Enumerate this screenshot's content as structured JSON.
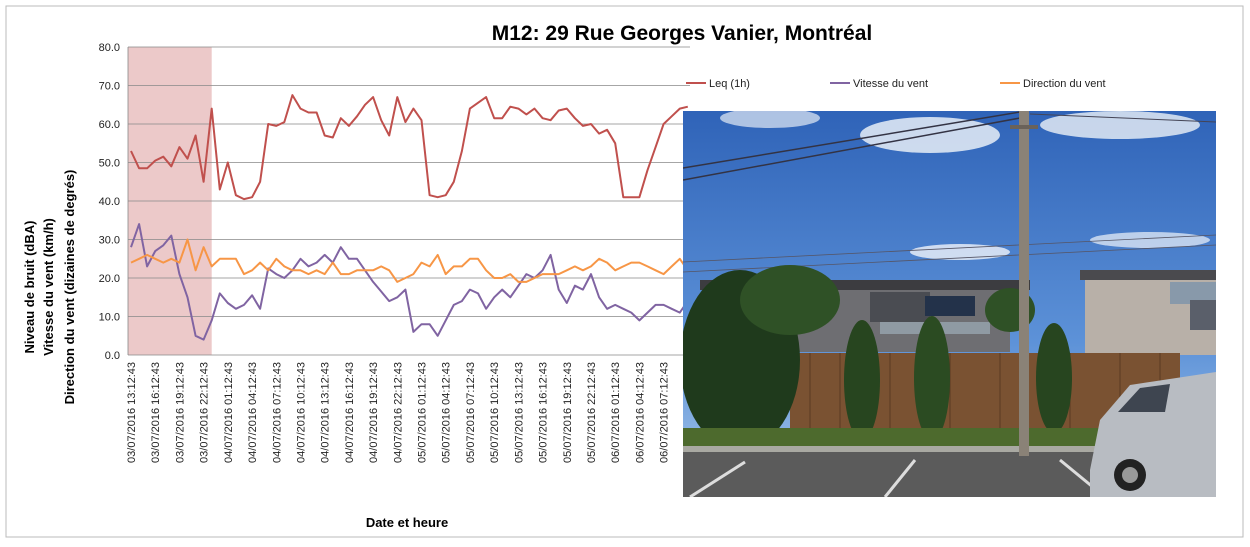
{
  "chart_data": {
    "type": "line",
    "title": "M12: 29 Rue Georges Vanier, Montréal",
    "x_label": "Date et heure",
    "y_label": [
      "Niveau de bruit (dBA)",
      "Vitesse du vent (km/h)",
      "Direction du vent (dizaines de degrés)"
    ],
    "categories": [
      "03/07/2016 13:12:43",
      null,
      null,
      "03/07/2016 16:12:43",
      null,
      null,
      "03/07/2016 19:12:43",
      null,
      null,
      "03/07/2016 22:12:43",
      null,
      null,
      "04/07/2016 01:12:43",
      null,
      null,
      "04/07/2016 04:12:43",
      null,
      null,
      "04/07/2016 07:12:43",
      null,
      null,
      "04/07/2016 10:12:43",
      null,
      null,
      "04/07/2016 13:12:43",
      null,
      null,
      "04/07/2016 16:12:43",
      null,
      null,
      "04/07/2016 19:12:43",
      null,
      null,
      "04/07/2016 22:12:43",
      null,
      null,
      "05/07/2016 01:12:43",
      null,
      null,
      "05/07/2016 04:12:43",
      null,
      null,
      "05/07/2016 07:12:43",
      null,
      null,
      "05/07/2016 10:12:43",
      null,
      null,
      "05/07/2016 13:12:43",
      null,
      null,
      "05/07/2016 16:12:43",
      null,
      null,
      "05/07/2016 19:12:43",
      null,
      null,
      "05/07/2016 22:12:43",
      null,
      null,
      "06/07/2016 01:12:43",
      null,
      null,
      "06/07/2016 04:12:43",
      null,
      null,
      "06/07/2016 07:12:43",
      null,
      null,
      null
    ],
    "series": [
      {
        "name": "Leq (1h)",
        "color": "#c0504d",
        "values": [
          53,
          48.5,
          48.5,
          50.5,
          51.5,
          49,
          54,
          51,
          57,
          45,
          64,
          43,
          50,
          41.5,
          40.5,
          41,
          45,
          60,
          59.5,
          60.5,
          67.5,
          64,
          63,
          63,
          57,
          56.5,
          61.5,
          59.5,
          62,
          65,
          67,
          61,
          57,
          67,
          60.5,
          64,
          61,
          41.5,
          41,
          41.5,
          45,
          53,
          64,
          65.5,
          67,
          61.5,
          61.5,
          64.5,
          64,
          62.5,
          64,
          61.5,
          61,
          63.5,
          64,
          61.5,
          59.5,
          60,
          57.5,
          58.5,
          55,
          41,
          41,
          41,
          48,
          54,
          60,
          62,
          64,
          64.5
        ]
      },
      {
        "name": "Vitesse du vent",
        "color": "#8064a2",
        "values": [
          28,
          34,
          23,
          27,
          28.5,
          31,
          21,
          15,
          5,
          4,
          9,
          16,
          13.5,
          12,
          13,
          15.5,
          12,
          22.5,
          21,
          20,
          22,
          25,
          23,
          24,
          26,
          24,
          28,
          25,
          25,
          22,
          19,
          16.5,
          14,
          15,
          17,
          6,
          8,
          8,
          5,
          9,
          13,
          14,
          17,
          16,
          12,
          15,
          17,
          15,
          18,
          21,
          20,
          22,
          26,
          17,
          13.5,
          18,
          17,
          21,
          15,
          12,
          13,
          12,
          11,
          9,
          11,
          13,
          13,
          12,
          11,
          14
        ]
      },
      {
        "name": "Direction du vent",
        "color": "#f79646",
        "values": [
          24,
          25,
          26,
          25,
          24,
          25,
          24,
          30,
          22,
          28,
          23,
          25,
          25,
          25,
          21,
          22,
          24,
          22,
          25,
          23,
          22,
          22,
          21,
          22,
          21,
          24,
          21,
          21,
          22,
          22,
          22,
          23,
          22,
          19,
          20,
          21,
          24,
          23,
          26,
          21,
          23,
          23,
          25,
          25,
          22,
          20,
          20,
          21,
          19,
          19,
          20,
          21,
          21,
          21,
          22,
          23,
          22,
          23,
          25,
          24,
          22,
          23,
          24,
          24,
          23,
          22,
          21,
          23,
          25,
          22
        ]
      }
    ],
    "ylim": [
      0,
      80
    ],
    "yticks": [
      {
        "value": 0,
        "label": "0.0"
      },
      {
        "value": 10,
        "label": "10.0"
      },
      {
        "value": 20,
        "label": "20.0"
      },
      {
        "value": 30,
        "label": "30.0"
      },
      {
        "value": 40,
        "label": "40.0"
      },
      {
        "value": 50,
        "label": "50.0"
      },
      {
        "value": 60,
        "label": "60.0"
      },
      {
        "value": 70,
        "label": "70.0"
      },
      {
        "value": 80,
        "label": "80.0"
      }
    ],
    "grid": true,
    "legend": "top-right",
    "highlight": {
      "from": 0,
      "to": 10,
      "color": "#ecc9c9"
    }
  }
}
